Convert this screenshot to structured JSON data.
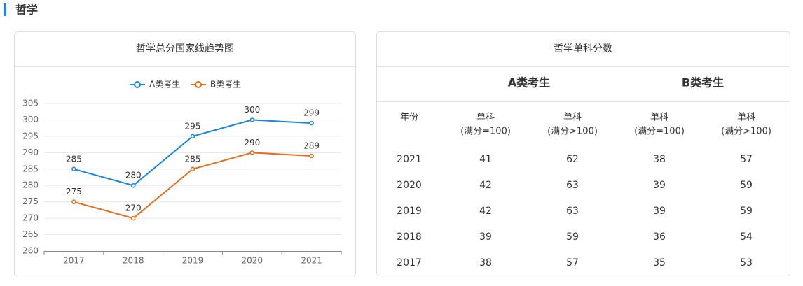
{
  "section_title": "哲学",
  "chart_data": {
    "type": "line",
    "title": "哲学总分国家线趋势图",
    "categories": [
      "2017",
      "2018",
      "2019",
      "2020",
      "2021"
    ],
    "series": [
      {
        "name": "A类考生",
        "color": "#1a86e0",
        "values": [
          285,
          280,
          295,
          300,
          299
        ]
      },
      {
        "name": "B类考生",
        "color": "#e86c1a",
        "values": [
          275,
          270,
          285,
          290,
          289
        ]
      }
    ],
    "ylim": [
      260,
      305
    ],
    "yticks": [
      260,
      265,
      270,
      275,
      280,
      285,
      290,
      295,
      300,
      305
    ],
    "grid": true
  },
  "table": {
    "title": "哲学单科分数",
    "groups": [
      {
        "name": "A类考生",
        "color": "#1a86e0"
      },
      {
        "name": "B类考生",
        "color": "#e86c1a"
      }
    ],
    "columns": [
      [
        "年份"
      ],
      [
        "单科",
        "(满分=100)"
      ],
      [
        "单科",
        "(满分>100)"
      ],
      [
        "单科",
        "(满分=100)"
      ],
      [
        "单科",
        "(满分>100)"
      ]
    ],
    "rows": [
      [
        "2021",
        41,
        62,
        38,
        57
      ],
      [
        "2020",
        42,
        63,
        39,
        59
      ],
      [
        "2019",
        42,
        63,
        39,
        59
      ],
      [
        "2018",
        39,
        59,
        36,
        54
      ],
      [
        "2017",
        38,
        57,
        35,
        53
      ]
    ]
  }
}
